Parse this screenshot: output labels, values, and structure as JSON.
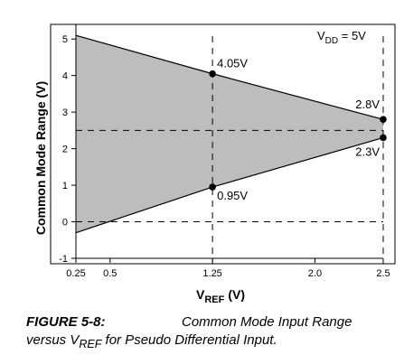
{
  "chart_data": {
    "type": "area",
    "title": "",
    "xlabel": "V",
    "xlabel_sub": "REF",
    "xlabel_unit": "(V)",
    "ylabel": "Common Mode Range (V)",
    "xlim": [
      0.25,
      2.55
    ],
    "ylim": [
      -1,
      5.4
    ],
    "x_ticks": [
      {
        "value": 0.25,
        "label": "0.25"
      },
      {
        "value": 0.5,
        "label": "0.5"
      },
      {
        "value": 1.25,
        "label": "1.25"
      },
      {
        "value": 2.0,
        "label": "2.0"
      },
      {
        "value": 2.5,
        "label": "2.5"
      }
    ],
    "y_ticks": [
      {
        "value": -1,
        "label": "-1"
      },
      {
        "value": 0,
        "label": "0"
      },
      {
        "value": 1,
        "label": "1"
      },
      {
        "value": 2,
        "label": "2"
      },
      {
        "value": 3,
        "label": "3"
      },
      {
        "value": 4,
        "label": "4"
      },
      {
        "value": 5,
        "label": "5"
      }
    ],
    "series": [
      {
        "key": "upper",
        "x": [
          0.25,
          1.25,
          2.5
        ],
        "y": [
          5.1,
          4.05,
          2.8
        ]
      },
      {
        "key": "lower",
        "x": [
          0.25,
          1.25,
          2.5
        ],
        "y": [
          -0.3,
          0.95,
          2.3
        ]
      }
    ],
    "fill_color": "#bdbdbd",
    "reference_lines": [
      {
        "orientation": "vertical",
        "value": 1.25
      },
      {
        "orientation": "vertical",
        "value": 2.5
      },
      {
        "orientation": "horizontal",
        "value": 2.5
      },
      {
        "orientation": "horizontal",
        "value": 0
      }
    ],
    "points": [
      {
        "x": 1.25,
        "y": 4.05,
        "label": "4.05V"
      },
      {
        "x": 1.25,
        "y": 0.95,
        "label": "0.95V"
      },
      {
        "x": 2.5,
        "y": 2.8,
        "label": "2.8V"
      },
      {
        "x": 2.5,
        "y": 2.3,
        "label": "2.3V"
      }
    ],
    "condition": {
      "prefix": "V",
      "sub": "DD",
      "suffix": " = 5V"
    },
    "grid": false
  },
  "caption": {
    "label": "FIGURE 5-8:",
    "line1": "Common Mode Input Range",
    "line2_pre": "versus V",
    "line2_sub": "REF",
    "line2_post": " for Pseudo Differential Input."
  }
}
